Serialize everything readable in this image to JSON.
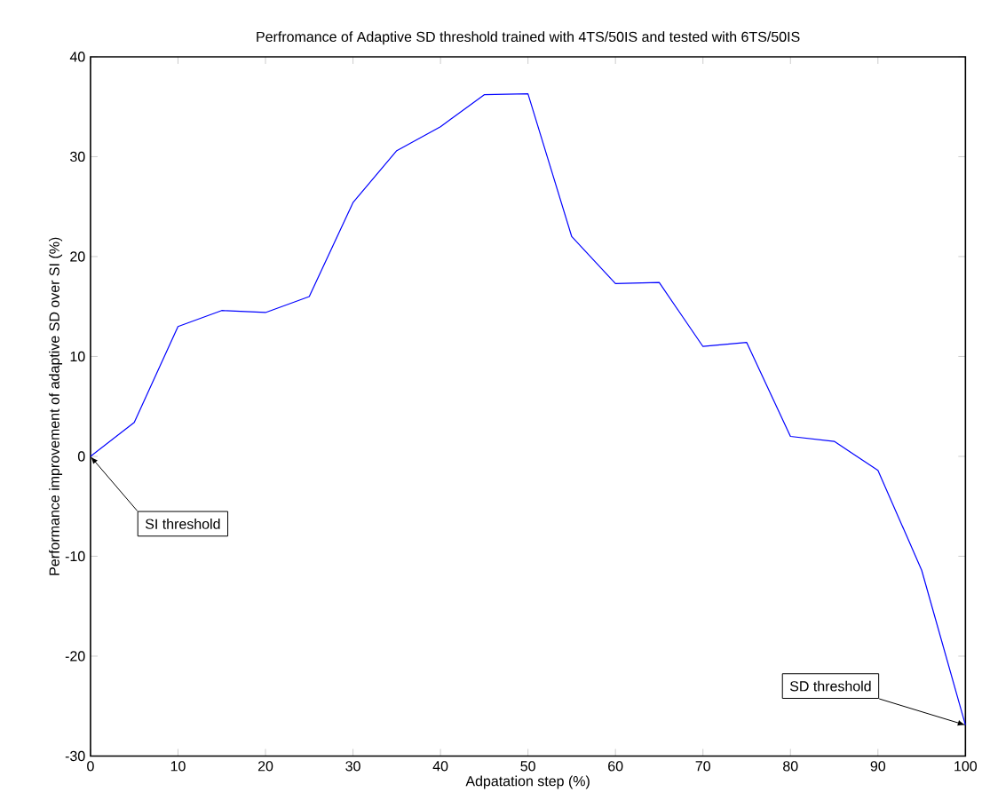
{
  "chart_data": {
    "type": "line",
    "title": "Perfromance of Adaptive SD threshold trained with 4TS/50IS and tested with 6TS/50IS",
    "xlabel": "Adpatation step (%)",
    "ylabel": "Performance improvement of adaptive SD over SI (%)",
    "x": [
      0,
      5,
      10,
      15,
      20,
      25,
      30,
      35,
      40,
      45,
      50,
      55,
      60,
      65,
      70,
      75,
      80,
      85,
      90,
      95,
      100
    ],
    "series": [
      {
        "color": "#0000ff",
        "values": [
          0,
          3.4,
          13.0,
          14.6,
          14.4,
          16.0,
          25.4,
          30.6,
          33.0,
          36.2,
          36.3,
          22.0,
          17.3,
          17.4,
          11.0,
          11.4,
          2.0,
          1.5,
          -1.4,
          -11.4,
          -26.9
        ]
      }
    ],
    "xlim": [
      0,
      100
    ],
    "ylim": [
      -30,
      40
    ],
    "xticks": [
      0,
      10,
      20,
      30,
      40,
      50,
      60,
      70,
      80,
      90,
      100
    ],
    "yticks": [
      -30,
      -20,
      -10,
      0,
      10,
      20,
      30,
      40
    ],
    "annotations": [
      {
        "text": "SI threshold",
        "x": 0,
        "y": 0
      },
      {
        "text": "SD threshold",
        "x": 100,
        "y": -26.9
      }
    ],
    "grid": false,
    "marker": "none",
    "line_style": "solid"
  }
}
